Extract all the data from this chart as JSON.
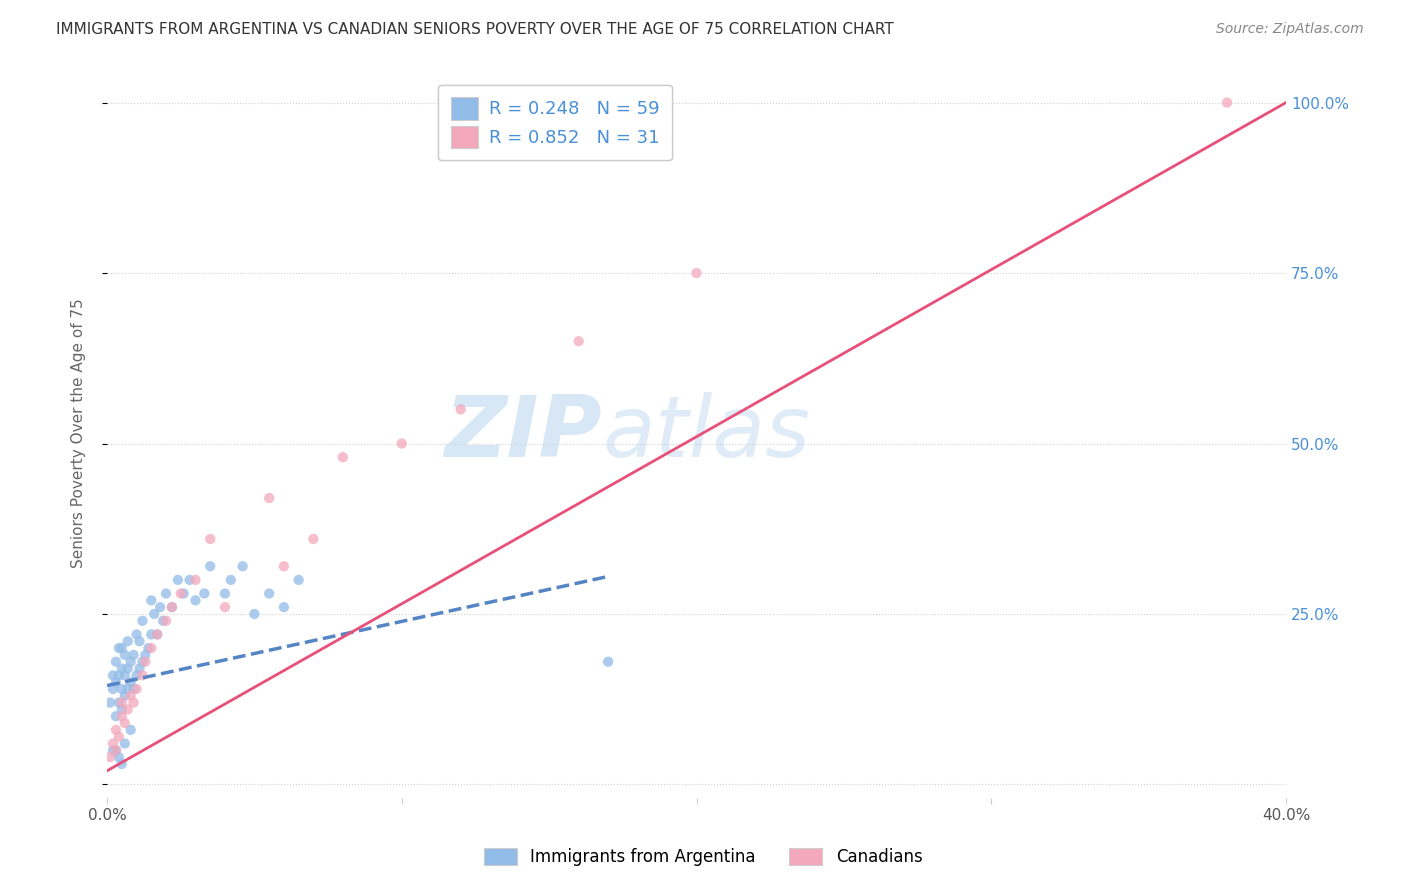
{
  "title": "IMMIGRANTS FROM ARGENTINA VS CANADIAN SENIORS POVERTY OVER THE AGE OF 75 CORRELATION CHART",
  "source": "Source: ZipAtlas.com",
  "ylabel": "Seniors Poverty Over the Age of 75",
  "xlim": [
    0.0,
    0.4
  ],
  "ylim": [
    -0.02,
    1.05
  ],
  "x_ticks": [
    0.0,
    0.1,
    0.2,
    0.3,
    0.4
  ],
  "x_tick_labels": [
    "0.0%",
    "",
    "",
    "",
    "40.0%"
  ],
  "y_ticks": [
    0.0,
    0.25,
    0.5,
    0.75,
    1.0
  ],
  "y_tick_right_labels": [
    "",
    "25.0%",
    "50.0%",
    "75.0%",
    "100.0%"
  ],
  "legend_blue_label": "R = 0.248   N = 59",
  "legend_pink_label": "R = 0.852   N = 31",
  "legend_label1": "Immigrants from Argentina",
  "legend_label2": "Canadians",
  "blue_color": "#92bce8",
  "pink_color": "#f4a8bb",
  "blue_line_color": "#5585c5",
  "pink_line_color": "#e8507a",
  "watermark_zip": "ZIP",
  "watermark_atlas": "atlas",
  "blue_scatter_x": [
    0.001,
    0.002,
    0.002,
    0.003,
    0.003,
    0.003,
    0.004,
    0.004,
    0.004,
    0.005,
    0.005,
    0.005,
    0.005,
    0.006,
    0.006,
    0.006,
    0.007,
    0.007,
    0.007,
    0.008,
    0.008,
    0.009,
    0.009,
    0.01,
    0.01,
    0.011,
    0.011,
    0.012,
    0.012,
    0.013,
    0.014,
    0.015,
    0.015,
    0.016,
    0.017,
    0.018,
    0.019,
    0.02,
    0.022,
    0.024,
    0.026,
    0.028,
    0.03,
    0.033,
    0.035,
    0.04,
    0.042,
    0.046,
    0.05,
    0.055,
    0.06,
    0.065,
    0.002,
    0.003,
    0.004,
    0.005,
    0.006,
    0.008,
    0.17
  ],
  "blue_scatter_y": [
    0.12,
    0.14,
    0.16,
    0.1,
    0.15,
    0.18,
    0.12,
    0.16,
    0.2,
    0.11,
    0.14,
    0.17,
    0.2,
    0.13,
    0.16,
    0.19,
    0.14,
    0.17,
    0.21,
    0.15,
    0.18,
    0.14,
    0.19,
    0.16,
    0.22,
    0.17,
    0.21,
    0.18,
    0.24,
    0.19,
    0.2,
    0.22,
    0.27,
    0.25,
    0.22,
    0.26,
    0.24,
    0.28,
    0.26,
    0.3,
    0.28,
    0.3,
    0.27,
    0.28,
    0.32,
    0.28,
    0.3,
    0.32,
    0.25,
    0.28,
    0.26,
    0.3,
    0.05,
    0.05,
    0.04,
    0.03,
    0.06,
    0.08,
    0.18
  ],
  "pink_scatter_x": [
    0.001,
    0.002,
    0.003,
    0.003,
    0.004,
    0.005,
    0.005,
    0.006,
    0.007,
    0.008,
    0.009,
    0.01,
    0.012,
    0.013,
    0.015,
    0.017,
    0.02,
    0.022,
    0.025,
    0.03,
    0.035,
    0.04,
    0.055,
    0.06,
    0.07,
    0.08,
    0.1,
    0.12,
    0.16,
    0.2,
    0.38
  ],
  "pink_scatter_y": [
    0.04,
    0.06,
    0.05,
    0.08,
    0.07,
    0.1,
    0.12,
    0.09,
    0.11,
    0.13,
    0.12,
    0.14,
    0.16,
    0.18,
    0.2,
    0.22,
    0.24,
    0.26,
    0.28,
    0.3,
    0.36,
    0.26,
    0.42,
    0.32,
    0.36,
    0.48,
    0.5,
    0.55,
    0.65,
    0.75,
    1.0
  ],
  "blue_trend_x": [
    0.0,
    0.17
  ],
  "blue_trend_y": [
    0.145,
    0.305
  ],
  "pink_trend_x": [
    0.0,
    0.4
  ],
  "pink_trend_y": [
    0.02,
    1.0
  ],
  "background_color": "#ffffff",
  "grid_color": "#d0d0d0",
  "tick_color": "#4a90d9",
  "label_color": "#4a90d9"
}
